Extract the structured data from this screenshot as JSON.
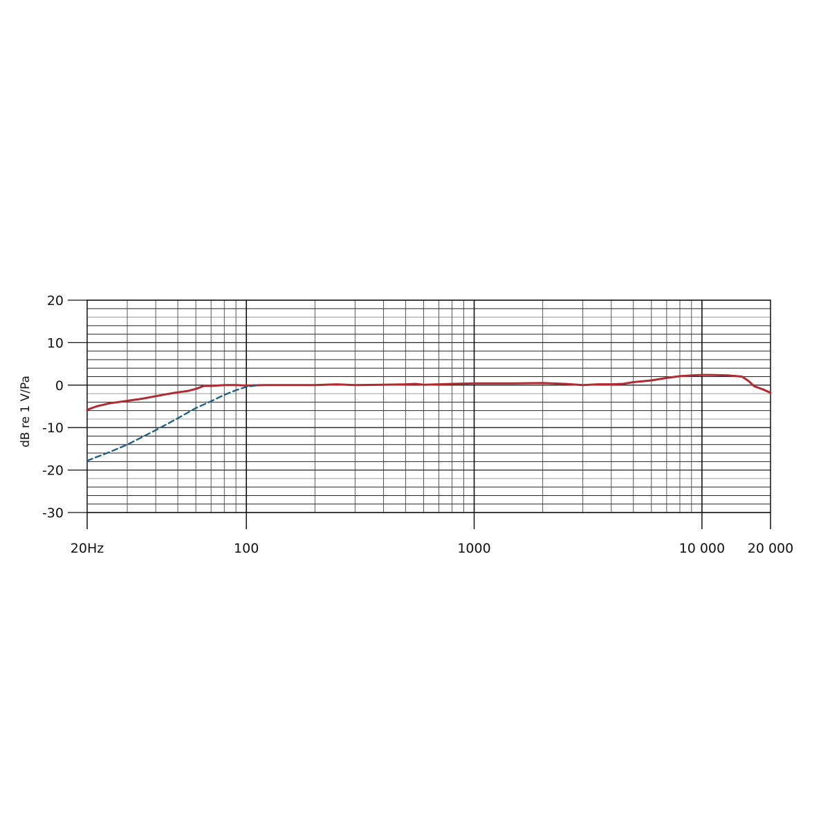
{
  "chart_data": {
    "type": "line",
    "title": "",
    "ylabel": "dB re 1 V/Pa",
    "xlabel": "",
    "xscale": "log",
    "xlim": [
      20,
      20000
    ],
    "ylim": [
      -30,
      20
    ],
    "grid": true,
    "x_ticks": [
      {
        "value": 20,
        "label": "20Hz"
      },
      {
        "value": 100,
        "label": "100"
      },
      {
        "value": 1000,
        "label": "1000"
      },
      {
        "value": 10000,
        "label": "10 000"
      },
      {
        "value": 20000,
        "label": "20 000"
      }
    ],
    "y_ticks": [
      {
        "value": 20,
        "label": "20"
      },
      {
        "value": 10,
        "label": "10"
      },
      {
        "value": 0,
        "label": "0"
      },
      {
        "value": -10,
        "label": "-10"
      },
      {
        "value": -20,
        "label": "-20"
      },
      {
        "value": -30,
        "label": "-30"
      }
    ],
    "series": [
      {
        "style": "solid",
        "color": "#b02a30",
        "points": [
          [
            20,
            -5.8
          ],
          [
            22,
            -5.0
          ],
          [
            25,
            -4.3
          ],
          [
            30,
            -3.7
          ],
          [
            35,
            -3.2
          ],
          [
            40,
            -2.6
          ],
          [
            45,
            -2.1
          ],
          [
            50,
            -1.7
          ],
          [
            55,
            -1.4
          ],
          [
            60,
            -0.9
          ],
          [
            65,
            -0.2
          ],
          [
            70,
            -0.2
          ],
          [
            80,
            0.0
          ],
          [
            90,
            0.0
          ],
          [
            100,
            -0.1
          ],
          [
            120,
            0.0
          ],
          [
            150,
            0.0
          ],
          [
            200,
            0.0
          ],
          [
            250,
            0.2
          ],
          [
            300,
            0.0
          ],
          [
            400,
            0.1
          ],
          [
            500,
            0.2
          ],
          [
            550,
            0.3
          ],
          [
            600,
            0.1
          ],
          [
            700,
            0.2
          ],
          [
            800,
            0.3
          ],
          [
            1000,
            0.4
          ],
          [
            1500,
            0.4
          ],
          [
            2000,
            0.5
          ],
          [
            2500,
            0.3
          ],
          [
            3000,
            0.0
          ],
          [
            3500,
            0.2
          ],
          [
            4000,
            0.2
          ],
          [
            4500,
            0.3
          ],
          [
            5000,
            0.7
          ],
          [
            6000,
            1.1
          ],
          [
            7000,
            1.7
          ],
          [
            8000,
            2.1
          ],
          [
            9000,
            2.3
          ],
          [
            10000,
            2.4
          ],
          [
            11000,
            2.4
          ],
          [
            13000,
            2.3
          ],
          [
            15000,
            2.0
          ],
          [
            16000,
            1.0
          ],
          [
            17000,
            -0.3
          ],
          [
            18500,
            -1.0
          ],
          [
            20000,
            -1.8
          ]
        ]
      },
      {
        "style": "dashed",
        "color": "#1f5f8a",
        "points": [
          [
            20,
            -17.8
          ],
          [
            25,
            -15.8
          ],
          [
            30,
            -14.0
          ],
          [
            35,
            -12.2
          ],
          [
            40,
            -10.6
          ],
          [
            50,
            -7.8
          ],
          [
            60,
            -5.4
          ],
          [
            70,
            -3.8
          ],
          [
            80,
            -2.3
          ],
          [
            90,
            -1.2
          ],
          [
            100,
            -0.4
          ],
          [
            110,
            -0.1
          ]
        ]
      }
    ]
  }
}
